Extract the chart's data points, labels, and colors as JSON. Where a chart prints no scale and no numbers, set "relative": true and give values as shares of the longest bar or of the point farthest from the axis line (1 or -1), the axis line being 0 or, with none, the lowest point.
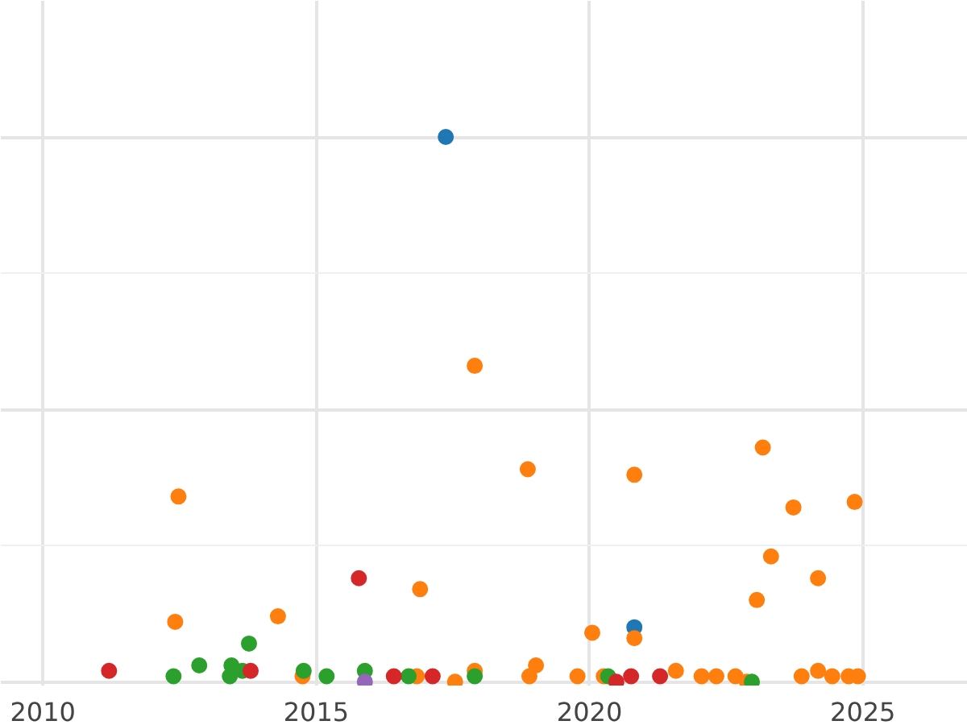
{
  "chart_data": {
    "type": "scatter",
    "relative": true,
    "marker": "circle",
    "grid": true,
    "xlim": [
      2009.23,
      2026.92
    ],
    "xticks": [
      2010,
      2015,
      2020,
      2025
    ],
    "series": [
      {
        "color": "#1f77b4",
        "x": [
          2017.37,
          2020.82
        ],
        "values": [
          1.0,
          0.1
        ]
      },
      {
        "color": "#ff7f0e",
        "x": [
          2012.42,
          2012.48,
          2014.3,
          2014.75,
          2016.84,
          2016.9,
          2017.54,
          2017.9,
          2017.9,
          2018.87,
          2018.9,
          2019.02,
          2019.78,
          2020.05,
          2020.26,
          2020.82,
          2020.82,
          2021.58,
          2022.05,
          2022.32,
          2022.67,
          2022.88,
          2023.06,
          2023.17,
          2023.32,
          2023.73,
          2023.88,
          2024.18,
          2024.18,
          2024.44,
          2024.74,
          2024.85,
          2024.91
        ],
        "values": [
          0.11,
          0.34,
          0.12,
          0.01,
          0.01,
          0.17,
          0.0,
          0.58,
          0.02,
          0.39,
          0.01,
          0.03,
          0.01,
          0.09,
          0.01,
          0.38,
          0.08,
          0.02,
          0.01,
          0.01,
          0.01,
          0.0,
          0.15,
          0.43,
          0.23,
          0.32,
          0.01,
          0.19,
          0.02,
          0.01,
          0.01,
          0.33,
          0.01
        ]
      },
      {
        "color": "#2ca02c",
        "x": [
          2012.39,
          2012.86,
          2013.42,
          2013.45,
          2013.65,
          2013.77,
          2014.77,
          2015.19,
          2015.89,
          2016.69,
          2017.9,
          2020.34,
          2022.97
        ],
        "values": [
          0.01,
          0.03,
          0.01,
          0.03,
          0.02,
          0.07,
          0.02,
          0.01,
          0.02,
          0.01,
          0.01,
          0.01,
          0.0
        ]
      },
      {
        "color": "#d62728",
        "x": [
          2011.21,
          2013.8,
          2015.78,
          2016.42,
          2017.13,
          2020.49,
          2020.76,
          2021.29
        ],
        "values": [
          0.02,
          0.02,
          0.19,
          0.01,
          0.01,
          0.0,
          0.01,
          0.01
        ]
      },
      {
        "color": "#9467bd",
        "x": [
          2015.89
        ],
        "values": [
          0.0
        ]
      }
    ]
  }
}
